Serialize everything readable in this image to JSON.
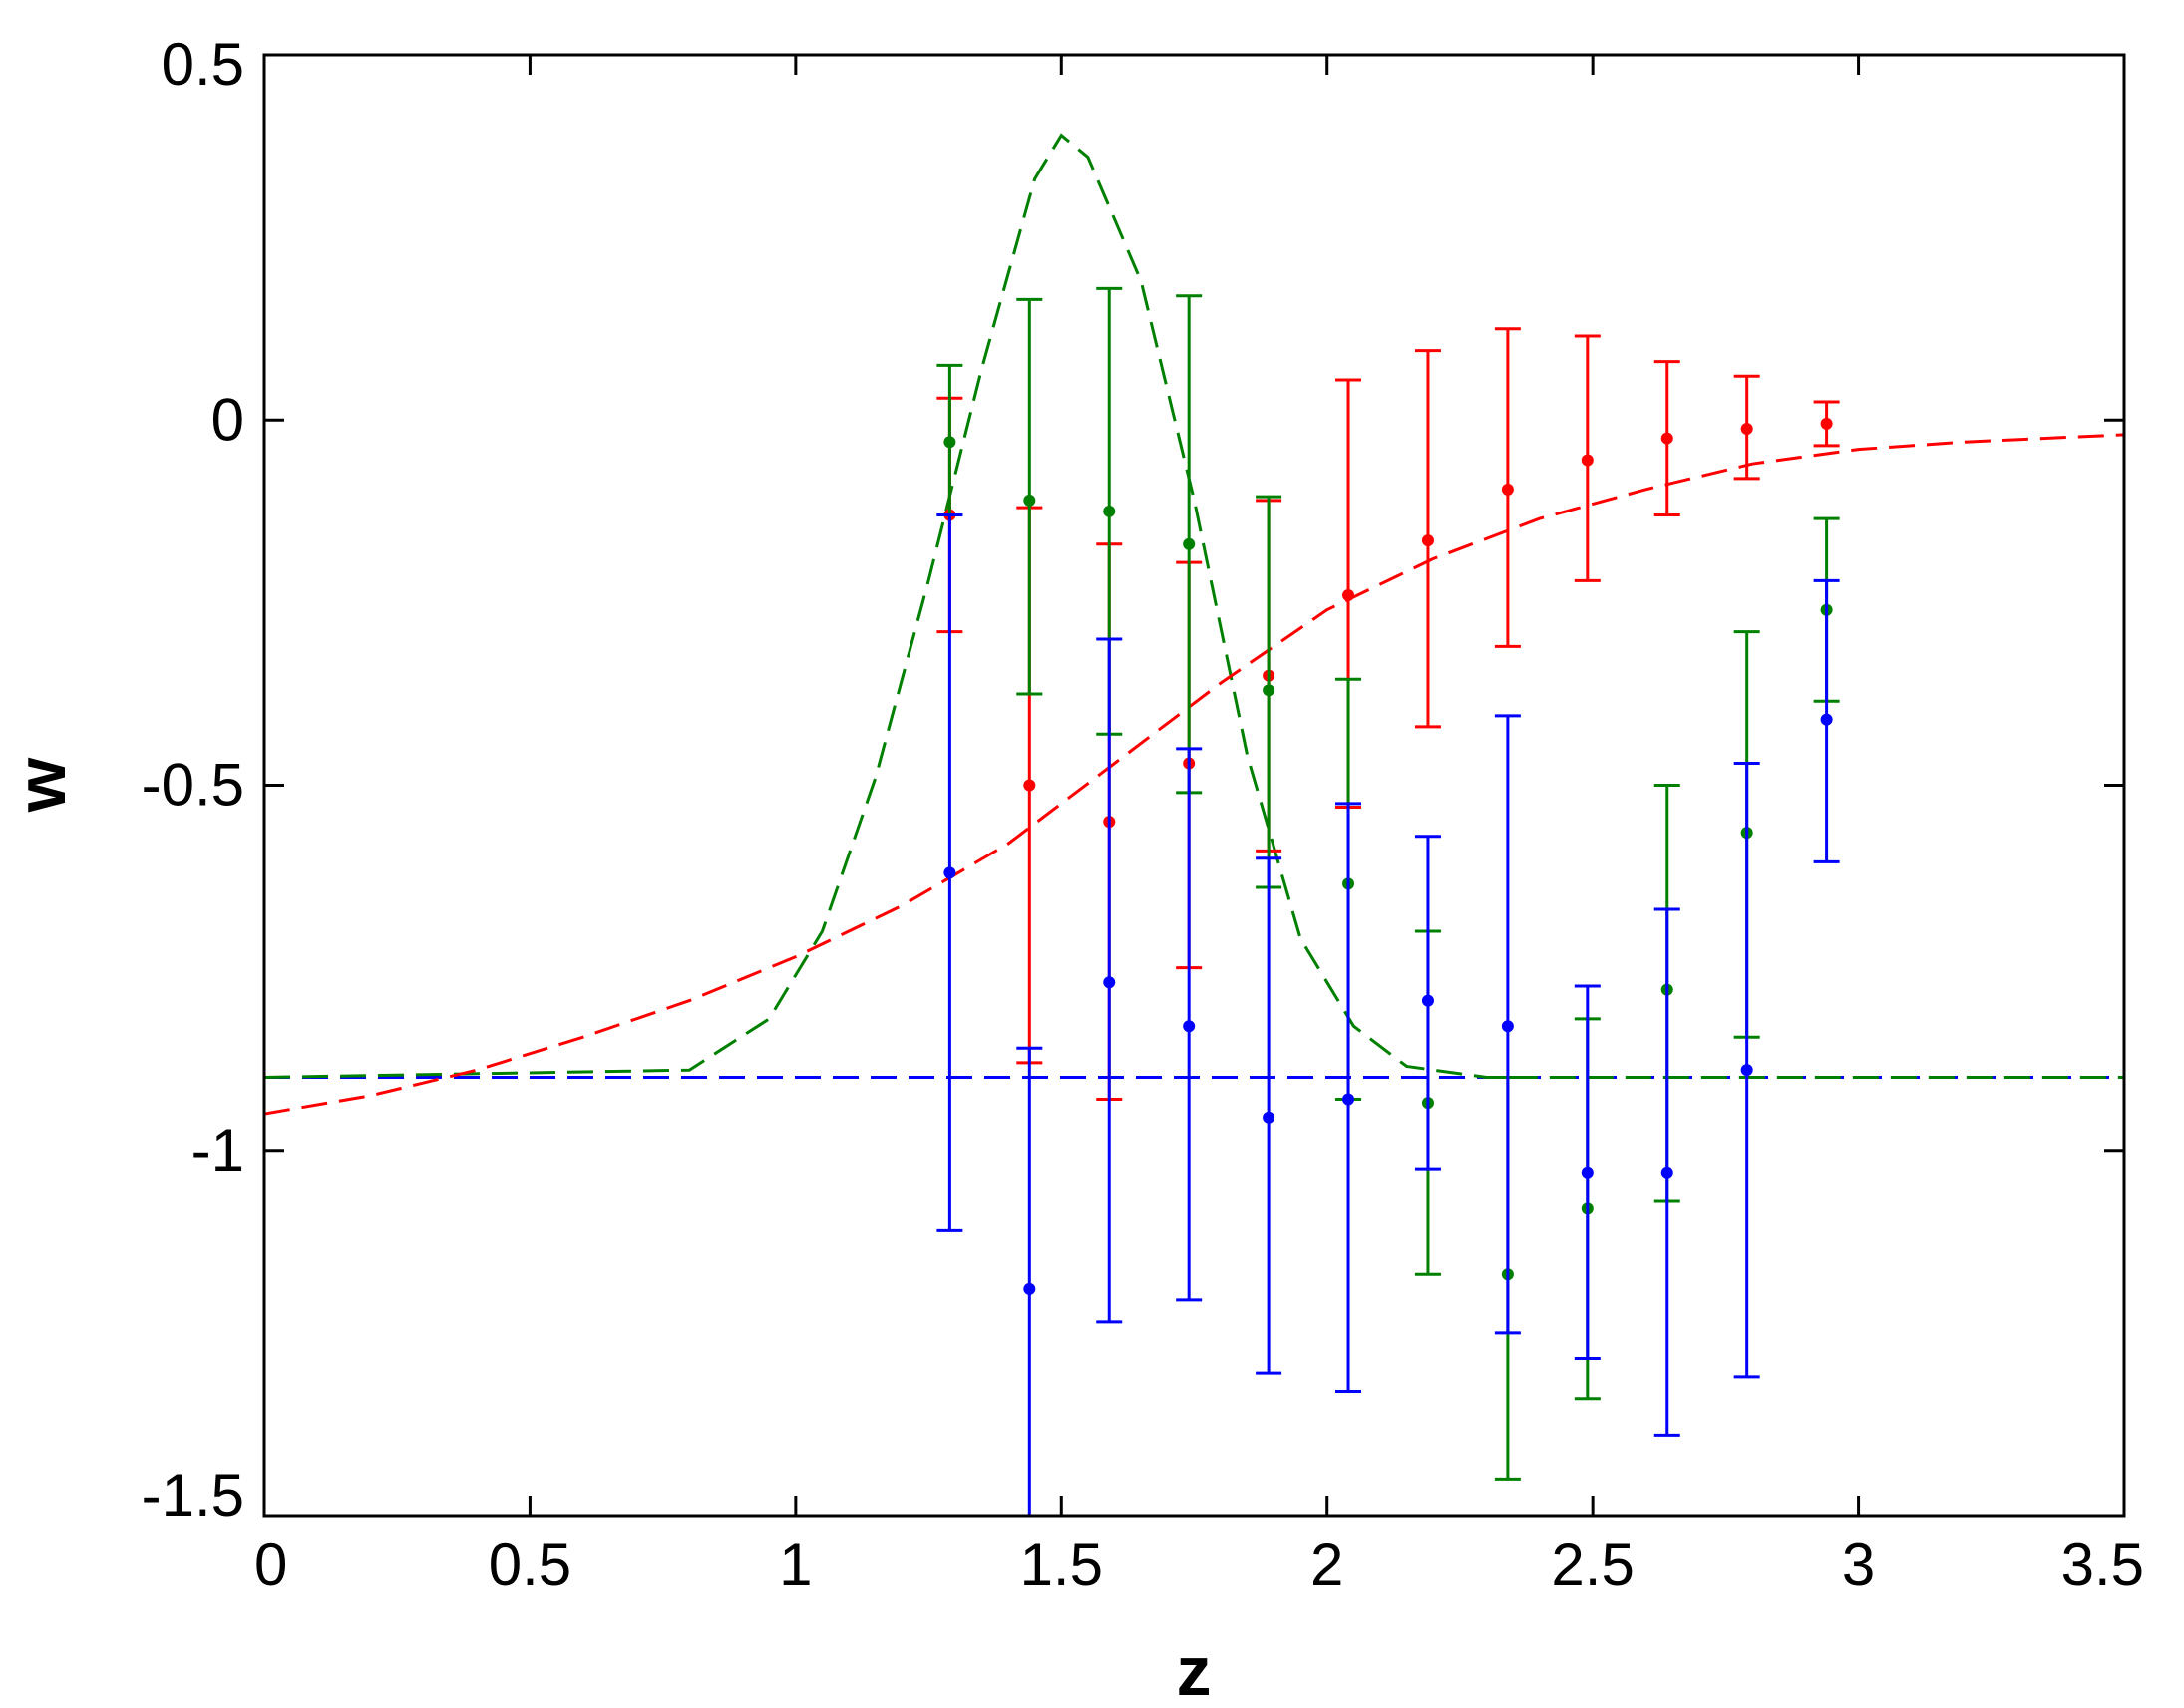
{
  "chart_data": {
    "type": "scatter",
    "title": "",
    "xlabel": "z",
    "ylabel": "w",
    "xlim": [
      0,
      3.5
    ],
    "ylim": [
      -1.5,
      0.5
    ],
    "xticks": [
      "0",
      "0.5",
      "1",
      "1.5",
      "2",
      "2.5",
      "3",
      "3.5"
    ],
    "yticks": [
      "0.5",
      "0",
      "-0.5",
      "-1",
      "-1.5"
    ],
    "grid": false,
    "legend": "none",
    "curves": [
      {
        "color": "#0000ff",
        "style": "dashed",
        "x": [
          0,
          3.5
        ],
        "y": [
          -0.9,
          -0.9
        ]
      },
      {
        "color": "#008000",
        "style": "dashed",
        "x": [
          0,
          0.8,
          0.95,
          1.05,
          1.15,
          1.25,
          1.35,
          1.45,
          1.5,
          1.55,
          1.65,
          1.75,
          1.85,
          1.95,
          2.05,
          2.15,
          2.3,
          3.5
        ],
        "y": [
          -0.9,
          -0.89,
          -0.82,
          -0.7,
          -0.49,
          -0.22,
          0.07,
          0.33,
          0.39,
          0.36,
          0.19,
          -0.11,
          -0.46,
          -0.71,
          -0.83,
          -0.885,
          -0.9,
          -0.9
        ]
      },
      {
        "color": "#ff0000",
        "style": "dashed",
        "x": [
          0,
          0.2,
          0.4,
          0.6,
          0.8,
          1.0,
          1.2,
          1.4,
          1.6,
          1.8,
          2.0,
          2.2,
          2.4,
          2.6,
          2.8,
          3.0,
          3.2,
          3.5
        ],
        "y": [
          -0.95,
          -0.925,
          -0.89,
          -0.845,
          -0.795,
          -0.735,
          -0.665,
          -0.58,
          -0.47,
          -0.36,
          -0.26,
          -0.19,
          -0.135,
          -0.095,
          -0.06,
          -0.04,
          -0.03,
          -0.02
        ]
      }
    ],
    "series": [
      {
        "color": "#ff0000",
        "x": [
          1.29,
          1.44,
          1.59,
          1.74,
          1.89,
          2.04,
          2.19,
          2.34,
          2.49,
          2.64,
          2.79,
          2.94
        ],
        "y": [
          -0.13,
          -0.5,
          -0.55,
          -0.47,
          -0.35,
          -0.24,
          -0.165,
          -0.095,
          -0.055,
          -0.025,
          -0.012,
          -0.005
        ],
        "ylow": [
          -0.29,
          -0.88,
          -0.93,
          -0.75,
          -0.59,
          -0.53,
          -0.42,
          -0.31,
          -0.22,
          -0.13,
          -0.08,
          -0.035
        ],
        "yhigh": [
          0.03,
          -0.12,
          -0.17,
          -0.195,
          -0.11,
          0.055,
          0.095,
          0.125,
          0.115,
          0.08,
          0.06,
          0.025
        ]
      },
      {
        "color": "#008000",
        "x": [
          1.29,
          1.44,
          1.59,
          1.74,
          1.89,
          2.04,
          2.19,
          2.34,
          2.49,
          2.64,
          2.79,
          2.94
        ],
        "y": [
          -0.03,
          -0.11,
          -0.125,
          -0.17,
          -0.37,
          -0.635,
          -0.935,
          -1.17,
          -1.08,
          -0.78,
          -0.565,
          -0.26
        ],
        "ylow": [
          -0.13,
          -0.375,
          -0.43,
          -0.51,
          -0.64,
          -0.93,
          -1.17,
          -1.45,
          -1.34,
          -1.07,
          -0.845,
          -0.385
        ],
        "yhigh": [
          0.075,
          0.165,
          0.18,
          0.17,
          -0.105,
          -0.355,
          -0.7,
          -0.9,
          -0.82,
          -0.5,
          -0.29,
          -0.135
        ]
      },
      {
        "color": "#0000ff",
        "x": [
          1.29,
          1.44,
          1.59,
          1.74,
          1.89,
          2.04,
          2.19,
          2.34,
          2.49,
          2.64,
          2.79,
          2.94
        ],
        "y": [
          -0.62,
          -1.19,
          -0.77,
          -0.83,
          -0.955,
          -0.93,
          -0.795,
          -0.83,
          -1.03,
          -1.03,
          -0.89,
          -0.41
        ],
        "ylow": [
          -1.11,
          -1.5,
          -1.235,
          -1.205,
          -1.305,
          -1.33,
          -1.025,
          -1.25,
          -1.285,
          -1.39,
          -1.31,
          -0.605
        ],
        "yhigh": [
          -0.13,
          -0.86,
          -0.3,
          -0.45,
          -0.6,
          -0.525,
          -0.57,
          -0.405,
          -0.775,
          -0.67,
          -0.47,
          -0.22
        ]
      }
    ]
  }
}
